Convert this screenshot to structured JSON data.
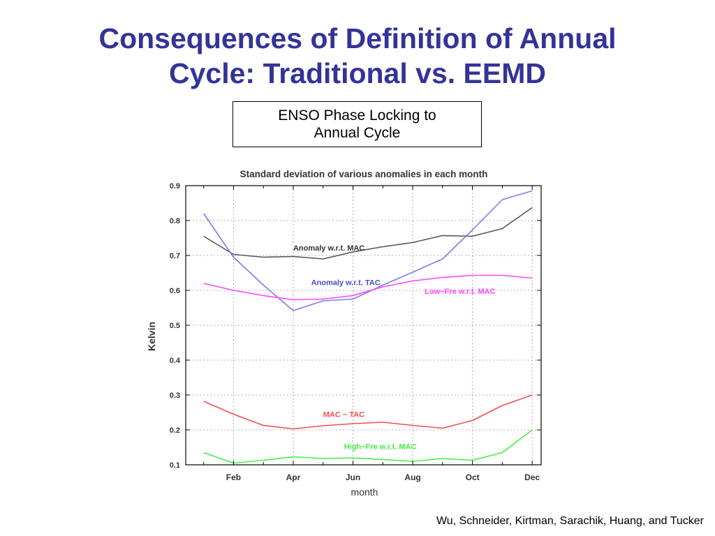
{
  "slide": {
    "title_line1": "Consequences of Definition of Annual",
    "title_line2": "Cycle: Traditional vs. EEMD",
    "callout_line1": "ENSO Phase Locking to",
    "callout_line2": "Annual Cycle",
    "attribution": "Wu, Schneider, Kirtman, Sarachik, Huang, and Tucker"
  },
  "chart_data": {
    "type": "line",
    "title": "Standard deviation of various anomalies in each month",
    "xlabel": "month",
    "ylabel": "Kelvin",
    "x": [
      1,
      2,
      3,
      4,
      5,
      6,
      7,
      8,
      9,
      10,
      11,
      12
    ],
    "xticks": [
      {
        "x": 2,
        "label": "Feb"
      },
      {
        "x": 4,
        "label": "Apr"
      },
      {
        "x": 6,
        "label": "Jun"
      },
      {
        "x": 8,
        "label": "Aug"
      },
      {
        "x": 10,
        "label": "Oct"
      },
      {
        "x": 12,
        "label": "Dec"
      }
    ],
    "ylim": [
      0.1,
      0.9
    ],
    "yticks": [
      "0.1",
      "0.2",
      "0.3",
      "0.4",
      "0.5",
      "0.6",
      "0.7",
      "0.8",
      "0.9"
    ],
    "xlim": [
      0.4,
      12.3
    ],
    "grid": true,
    "series": [
      {
        "name": "Anomaly w.r.t. MAC",
        "color": "#555555",
        "values": [
          0.755,
          0.703,
          0.695,
          0.697,
          0.69,
          0.71,
          0.725,
          0.737,
          0.757,
          0.755,
          0.777,
          0.837
        ]
      },
      {
        "name": "Anomaly w.r.t. TAC",
        "color": "#7b7bf0",
        "values": [
          0.82,
          0.695,
          0.615,
          0.542,
          0.57,
          0.575,
          0.615,
          0.652,
          0.69,
          0.773,
          0.86,
          0.885
        ]
      },
      {
        "name": "Low−Fre w.r.t. MAC",
        "color": "#ff44ff",
        "values": [
          0.62,
          0.6,
          0.585,
          0.573,
          0.575,
          0.585,
          0.61,
          0.627,
          0.637,
          0.643,
          0.643,
          0.635
        ]
      },
      {
        "name": "MAC − TAC",
        "color": "#f05050",
        "values": [
          0.282,
          0.245,
          0.213,
          0.203,
          0.212,
          0.218,
          0.222,
          0.213,
          0.205,
          0.227,
          0.27,
          0.3
        ]
      },
      {
        "name": "High−Fre w.r.t. MAC",
        "color": "#44ee44",
        "values": [
          0.135,
          0.105,
          0.113,
          0.123,
          0.118,
          0.12,
          0.115,
          0.11,
          0.118,
          0.113,
          0.135,
          0.2
        ]
      }
    ],
    "annotations": [
      {
        "text": "Anomaly w.r.t. MAC",
        "series": 0,
        "x": 4.0,
        "y": 0.714
      },
      {
        "text": "Anomaly w.r.t. TAC",
        "series": 1,
        "x": 4.6,
        "y": 0.615
      },
      {
        "text": "Low−Fre w.r.t. MAC",
        "series": 2,
        "x": 8.4,
        "y": 0.59
      },
      {
        "text": "MAC − TAC",
        "series": 3,
        "x": 5.0,
        "y": 0.237
      },
      {
        "text": "High−Fre w.r.t. MAC",
        "series": 4,
        "x": 5.7,
        "y": 0.145
      }
    ]
  }
}
